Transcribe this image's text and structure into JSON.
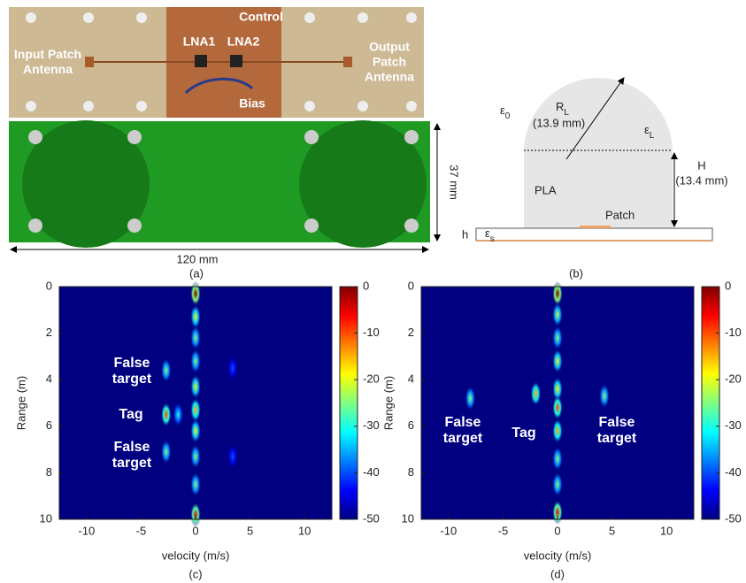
{
  "photo": {
    "control": "Control",
    "lna1": "LNA1",
    "lna2": "LNA2",
    "input": "Input Patch Antenna",
    "output": "Output Patch Antenna",
    "bias": "Bias",
    "height_label": "37 mm",
    "width_label": "120 mm",
    "caption": "(a)"
  },
  "diagram": {
    "eps0": {
      "symbol": "ε",
      "subscript": "0"
    },
    "radius": {
      "symbol": "R",
      "subscript": "L",
      "value": "(13.9 mm)"
    },
    "epsL": {
      "symbol": "ε",
      "subscript": "L"
    },
    "height": {
      "symbol": "H",
      "value": "(13.4 mm)"
    },
    "material": "PLA",
    "patch": "Patch",
    "thickness": "h",
    "epsS": {
      "symbol": "ε",
      "subscript": "s"
    },
    "caption": "(b)"
  },
  "chart_data": [
    {
      "type": "heatmap",
      "xlabel": "velocity (m/s)",
      "ylabel": "Range (m)",
      "caption": "(c)",
      "xlim": [
        -12.5,
        12.5
      ],
      "xticks": [
        -10,
        -5,
        0,
        5,
        10
      ],
      "ylim": [
        0,
        10
      ],
      "y_reversed": true,
      "yticks": [
        0,
        2,
        4,
        6,
        8,
        10
      ],
      "colormap": "jet",
      "clim": [
        -50,
        0
      ],
      "cticks": [
        0,
        -10,
        -20,
        -30,
        -40,
        -50
      ],
      "x": [
        0,
        0,
        0,
        0,
        0,
        0,
        0,
        0,
        0,
        0,
        -2.7,
        -2.7,
        -2.7,
        -1.6,
        3.4,
        3.4
      ],
      "y": [
        0.3,
        1.3,
        2.2,
        3.2,
        4.3,
        5.3,
        6.2,
        7.3,
        8.5,
        9.8,
        3.6,
        5.5,
        7.1,
        5.5,
        3.5,
        7.3
      ],
      "values": [
        0,
        -20,
        -25,
        -25,
        -20,
        -15,
        -20,
        -25,
        -25,
        -5,
        -25,
        -10,
        -25,
        -30,
        -40,
        -40
      ],
      "annotations": [
        "False target",
        "Tag",
        "False target"
      ]
    },
    {
      "type": "heatmap",
      "xlabel": "velocity (m/s)",
      "ylabel": "Range (m)",
      "caption": "(d)",
      "xlim": [
        -12.5,
        12.5
      ],
      "xticks": [
        -10,
        -5,
        0,
        5,
        10
      ],
      "ylim": [
        0,
        10
      ],
      "y_reversed": true,
      "yticks": [
        0,
        2,
        4,
        6,
        8,
        10
      ],
      "colormap": "jet",
      "clim": [
        -50,
        0
      ],
      "cticks": [
        0,
        -10,
        -20,
        -30,
        -40,
        -50
      ],
      "x": [
        0,
        0,
        0,
        0,
        0,
        0,
        0,
        0,
        0,
        0,
        -8,
        -2,
        4.3
      ],
      "y": [
        0.3,
        1.2,
        2.2,
        3.2,
        4.4,
        5.2,
        6.2,
        7.4,
        8.5,
        9.7,
        4.8,
        4.6,
        4.7
      ],
      "values": [
        0,
        -22,
        -25,
        -20,
        -18,
        -10,
        -15,
        -25,
        -25,
        -5,
        -25,
        -15,
        -25
      ],
      "annotations": [
        "False target",
        "Tag",
        "False target"
      ]
    }
  ]
}
